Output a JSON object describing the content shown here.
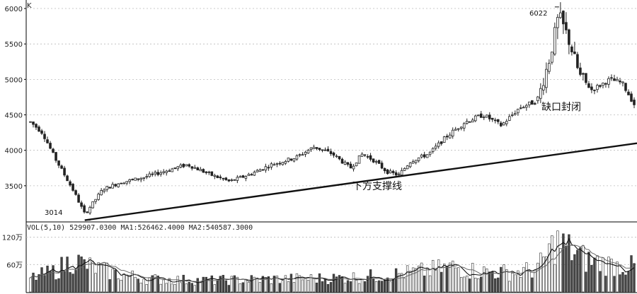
{
  "chart_data": [
    {
      "type": "candlestick",
      "corner_label": "K",
      "ylim": [
        3000,
        6100
      ],
      "y_ticks": [
        "6000",
        "5500",
        "5000",
        "4500",
        "4000",
        "3500"
      ],
      "y_tick_values": [
        6000,
        5500,
        5000,
        4500,
        4000,
        3500
      ],
      "grid": true,
      "price_anchors": [
        {
          "t": 0.0,
          "v": 4400
        },
        {
          "t": 0.02,
          "v": 4250
        },
        {
          "t": 0.04,
          "v": 3900
        },
        {
          "t": 0.07,
          "v": 3450
        },
        {
          "t": 0.09,
          "v": 3100
        },
        {
          "t": 0.12,
          "v": 3450
        },
        {
          "t": 0.15,
          "v": 3550
        },
        {
          "t": 0.18,
          "v": 3600
        },
        {
          "t": 0.22,
          "v": 3700
        },
        {
          "t": 0.26,
          "v": 3800
        },
        {
          "t": 0.3,
          "v": 3650
        },
        {
          "t": 0.33,
          "v": 3560
        },
        {
          "t": 0.36,
          "v": 3650
        },
        {
          "t": 0.4,
          "v": 3800
        },
        {
          "t": 0.44,
          "v": 3900
        },
        {
          "t": 0.47,
          "v": 4050
        },
        {
          "t": 0.5,
          "v": 3950
        },
        {
          "t": 0.53,
          "v": 3750
        },
        {
          "t": 0.55,
          "v": 3950
        },
        {
          "t": 0.57,
          "v": 3850
        },
        {
          "t": 0.59,
          "v": 3700
        },
        {
          "t": 0.61,
          "v": 3650
        },
        {
          "t": 0.63,
          "v": 3850
        },
        {
          "t": 0.66,
          "v": 3950
        },
        {
          "t": 0.69,
          "v": 4200
        },
        {
          "t": 0.72,
          "v": 4400
        },
        {
          "t": 0.75,
          "v": 4500
        },
        {
          "t": 0.78,
          "v": 4350
        },
        {
          "t": 0.81,
          "v": 4600
        },
        {
          "t": 0.84,
          "v": 4700
        },
        {
          "t": 0.86,
          "v": 5300
        },
        {
          "t": 0.875,
          "v": 5900
        },
        {
          "t": 0.89,
          "v": 5600
        },
        {
          "t": 0.91,
          "v": 5050
        },
        {
          "t": 0.93,
          "v": 4850
        },
        {
          "t": 0.96,
          "v": 5000
        },
        {
          "t": 0.98,
          "v": 4950
        },
        {
          "t": 1.0,
          "v": 4650
        }
      ],
      "support_line": {
        "label": "下方支撑线",
        "start": 3014,
        "end": 4100
      },
      "annotations": [
        {
          "text": "3014",
          "value": 3014,
          "kind": "low"
        },
        {
          "text": "6022",
          "value": 6022,
          "kind": "high"
        },
        {
          "text": "缺口封闭",
          "kind": "note"
        },
        {
          "text": "下方支撑线",
          "kind": "note"
        }
      ]
    },
    {
      "type": "bar",
      "indicator": "VOL(5,10) 529907.0300 MA1:526462.4000 MA2:540587.3000",
      "y_ticks": [
        "120万",
        "60万"
      ],
      "y_tick_values": [
        120,
        60
      ],
      "unit": "万",
      "vol_anchors": [
        {
          "t": 0.0,
          "v": 30
        },
        {
          "t": 0.04,
          "v": 45
        },
        {
          "t": 0.07,
          "v": 70
        },
        {
          "t": 0.1,
          "v": 55
        },
        {
          "t": 0.14,
          "v": 40
        },
        {
          "t": 0.2,
          "v": 28
        },
        {
          "t": 0.3,
          "v": 25
        },
        {
          "t": 0.4,
          "v": 28
        },
        {
          "t": 0.5,
          "v": 30
        },
        {
          "t": 0.55,
          "v": 33
        },
        {
          "t": 0.6,
          "v": 38
        },
        {
          "t": 0.65,
          "v": 45
        },
        {
          "t": 0.7,
          "v": 55
        },
        {
          "t": 0.74,
          "v": 45
        },
        {
          "t": 0.8,
          "v": 42
        },
        {
          "t": 0.84,
          "v": 50
        },
        {
          "t": 0.87,
          "v": 110
        },
        {
          "t": 0.89,
          "v": 95
        },
        {
          "t": 0.92,
          "v": 70
        },
        {
          "t": 0.96,
          "v": 60
        },
        {
          "t": 1.0,
          "v": 55
        }
      ]
    }
  ]
}
